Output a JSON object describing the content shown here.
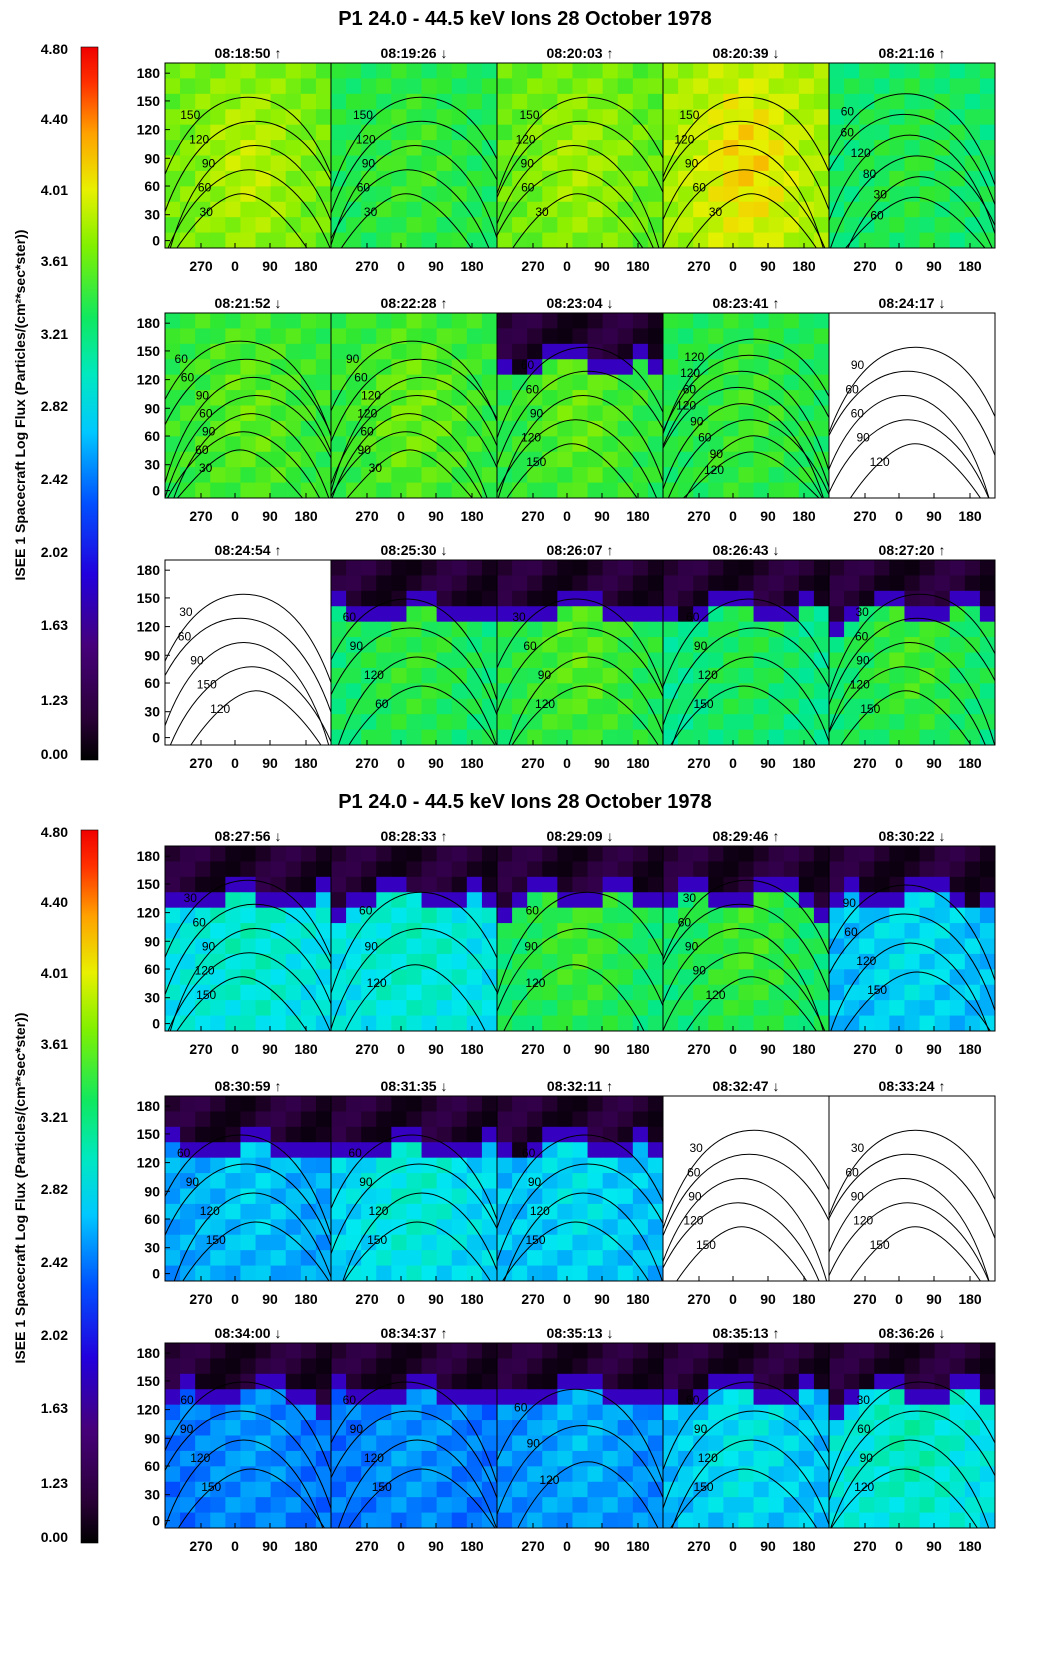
{
  "figure": {
    "colorbar_label": "ISEE 1 Spacecraft   Log Flux (Particles/(cm²*sec*ster))",
    "colorbar_ticks": [
      "4.80",
      "4.40",
      "4.01",
      "3.61",
      "3.21",
      "2.82",
      "2.42",
      "2.02",
      "1.63",
      "1.23",
      "0.00"
    ],
    "y_ticks": [
      "180",
      "150",
      "120",
      "90",
      "60",
      "30",
      "0"
    ],
    "x_ticks": [
      "270",
      "0",
      "90",
      "180"
    ],
    "colors": {
      "scale": [
        "#000000",
        "#2a0038",
        "#46007a",
        "#3300cc",
        "#0030ff",
        "#0090ff",
        "#00e8f0",
        "#00e890",
        "#30e830",
        "#90f000",
        "#e8f000",
        "#ffa000",
        "#ff3000",
        "#f00000"
      ]
    }
  },
  "chart_data": [
    {
      "type": "heatmap",
      "title": "P1 24.0 - 44.5 keV Ions 28 October 1978",
      "panels": [
        {
          "label": "08:18:50 ↑",
          "level": 3.55,
          "peak": 0.6,
          "dark": false,
          "empty": false,
          "contours": [
            "150",
            "120",
            "90",
            "60",
            "30"
          ]
        },
        {
          "label": "08:19:26 ↓",
          "level": 3.2,
          "peak": 0.3,
          "dark": false,
          "empty": false,
          "contours": [
            "150",
            "120",
            "90",
            "60",
            "30"
          ]
        },
        {
          "label": "08:20:03 ↑",
          "level": 3.5,
          "peak": 0.5,
          "dark": false,
          "empty": false,
          "contours": [
            "150",
            "120",
            "90",
            "60",
            "30"
          ]
        },
        {
          "label": "08:20:39 ↓",
          "level": 3.75,
          "peak": 0.8,
          "dark": false,
          "empty": false,
          "contours": [
            "150",
            "120",
            "90",
            "60",
            "30"
          ]
        },
        {
          "label": "08:21:16 ↑",
          "level": 3.1,
          "peak": 0.3,
          "dark": false,
          "empty": false,
          "contours": [
            "60",
            "60",
            "120",
            "80",
            "30",
            "60"
          ]
        },
        {
          "label": "08:21:52 ↓",
          "level": 3.3,
          "peak": 0.4,
          "dark": false,
          "empty": false,
          "contours": [
            "60",
            "60",
            "90",
            "60",
            "90",
            "60",
            "30"
          ]
        },
        {
          "label": "08:22:28 ↑",
          "level": 3.3,
          "peak": 0.5,
          "dark": false,
          "empty": false,
          "contours": [
            "90",
            "60",
            "120",
            "120",
            "60",
            "90",
            "30"
          ]
        },
        {
          "label": "08:23:04 ↓",
          "level": 3.25,
          "peak": 0.5,
          "dark": true,
          "empty": false,
          "contours": [
            "60",
            "60",
            "90",
            "120",
            "150"
          ]
        },
        {
          "label": "08:23:41 ↑",
          "level": 3.2,
          "peak": 0.3,
          "dark": false,
          "empty": false,
          "contours": [
            "120",
            "120",
            "60",
            "120",
            "90",
            "60",
            "90",
            "120"
          ]
        },
        {
          "label": "08:24:17 ↓",
          "level": 0,
          "peak": 0,
          "dark": false,
          "empty": true,
          "contours": [
            "90",
            "60",
            "60",
            "90",
            "120"
          ]
        },
        {
          "label": "08:24:54 ↑",
          "level": 0,
          "peak": 0,
          "dark": false,
          "empty": true,
          "contours": [
            "30",
            "60",
            "90",
            "150",
            "120"
          ]
        },
        {
          "label": "08:25:30 ↓",
          "level": 3.1,
          "peak": 0.4,
          "dark": true,
          "empty": false,
          "contours": [
            "60",
            "90",
            "120",
            "60"
          ]
        },
        {
          "label": "08:26:07 ↑",
          "level": 3.2,
          "peak": 0.5,
          "dark": true,
          "empty": false,
          "contours": [
            "30",
            "60",
            "90",
            "120"
          ]
        },
        {
          "label": "08:26:43 ↓",
          "level": 3.0,
          "peak": 0.4,
          "dark": true,
          "empty": false,
          "contours": [
            "60",
            "90",
            "120",
            "150"
          ]
        },
        {
          "label": "08:27:20 ↑",
          "level": 3.1,
          "peak": 0.5,
          "dark": true,
          "empty": false,
          "contours": [
            "30",
            "60",
            "90",
            "120",
            "150"
          ]
        }
      ]
    },
    {
      "type": "heatmap",
      "title": "P1 24.0 - 44.5 keV Ions 28 October 1978",
      "panels": [
        {
          "label": "08:27:56 ↓",
          "level": 2.6,
          "peak": 0.3,
          "dark": true,
          "empty": false,
          "contours": [
            "30",
            "60",
            "90",
            "120",
            "150"
          ]
        },
        {
          "label": "08:28:33 ↑",
          "level": 2.6,
          "peak": 0.3,
          "dark": true,
          "empty": false,
          "contours": [
            "60",
            "90",
            "120"
          ]
        },
        {
          "label": "08:29:09 ↓",
          "level": 3.1,
          "peak": 0.5,
          "dark": true,
          "empty": false,
          "contours": [
            "60",
            "90",
            "120"
          ]
        },
        {
          "label": "08:29:46 ↑",
          "level": 3.1,
          "peak": 0.5,
          "dark": true,
          "empty": false,
          "contours": [
            "30",
            "60",
            "90",
            "90",
            "120"
          ]
        },
        {
          "label": "08:30:22 ↓",
          "level": 2.4,
          "peak": 0.3,
          "dark": true,
          "empty": false,
          "contours": [
            "90",
            "60",
            "120",
            "150"
          ]
        },
        {
          "label": "08:30:59 ↑",
          "level": 2.3,
          "peak": 0.3,
          "dark": true,
          "empty": false,
          "contours": [
            "60",
            "90",
            "120",
            "150"
          ]
        },
        {
          "label": "08:31:35 ↓",
          "level": 2.5,
          "peak": 0.4,
          "dark": true,
          "empty": false,
          "contours": [
            "60",
            "90",
            "120",
            "150"
          ]
        },
        {
          "label": "08:32:11 ↑",
          "level": 2.4,
          "peak": 0.3,
          "dark": true,
          "empty": false,
          "contours": [
            "60",
            "90",
            "120",
            "150"
          ]
        },
        {
          "label": "08:32:47 ↓",
          "level": 0,
          "peak": 0,
          "dark": false,
          "empty": true,
          "contours": [
            "30",
            "60",
            "90",
            "120",
            "150"
          ]
        },
        {
          "label": "08:33:24 ↑",
          "level": 0,
          "peak": 0,
          "dark": false,
          "empty": true,
          "contours": [
            "30",
            "60",
            "90",
            "120",
            "150"
          ]
        },
        {
          "label": "08:34:00 ↓",
          "level": 2.1,
          "peak": 0.3,
          "dark": true,
          "empty": false,
          "contours": [
            "60",
            "90",
            "120",
            "150"
          ]
        },
        {
          "label": "08:34:37 ↑",
          "level": 2.1,
          "peak": 0.3,
          "dark": true,
          "empty": false,
          "contours": [
            "60",
            "90",
            "120",
            "150"
          ]
        },
        {
          "label": "08:35:13 ↓",
          "level": 2.2,
          "peak": 0.3,
          "dark": true,
          "empty": false,
          "contours": [
            "60",
            "90",
            "120"
          ]
        },
        {
          "label": "08:35:13 ↑",
          "level": 2.4,
          "peak": 0.4,
          "dark": true,
          "empty": false,
          "contours": [
            "60",
            "90",
            "120",
            "150"
          ]
        },
        {
          "label": "08:36:26 ↓",
          "level": 2.6,
          "peak": 0.4,
          "dark": true,
          "empty": false,
          "contours": [
            "30",
            "60",
            "90",
            "120"
          ]
        }
      ]
    }
  ]
}
